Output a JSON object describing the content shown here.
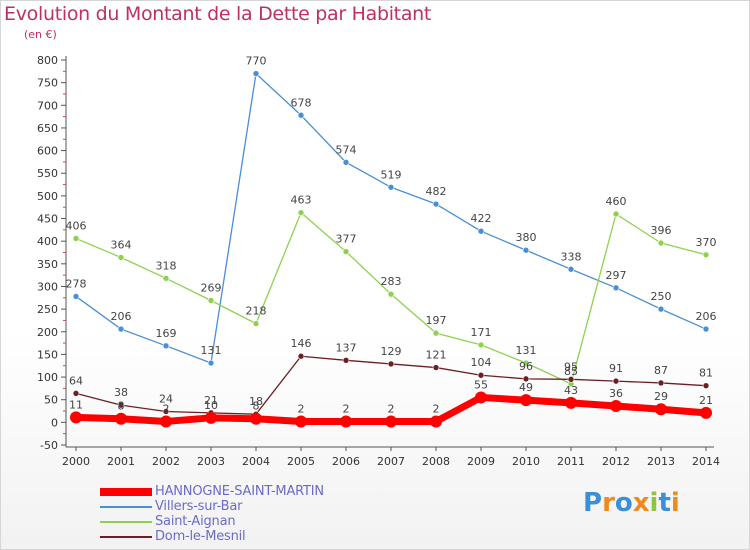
{
  "chart_data": {
    "type": "line",
    "title": "Evolution du Montant de la Dette par Habitant",
    "subtitle": "(en €)",
    "x": [
      2000,
      2001,
      2002,
      2003,
      2004,
      2005,
      2006,
      2007,
      2008,
      2009,
      2010,
      2011,
      2012,
      2013,
      2014
    ],
    "ylim": [
      -50,
      800
    ],
    "yticks": [
      -50,
      0,
      50,
      100,
      150,
      200,
      250,
      300,
      350,
      400,
      450,
      500,
      550,
      600,
      650,
      700,
      750,
      800
    ],
    "grid": false,
    "legend_position": "bottom-left",
    "series": [
      {
        "name": "HANNOGNE-SAINT-MARTIN",
        "color": "#ff0000",
        "values": [
          11,
          8,
          2,
          10,
          8,
          2,
          2,
          2,
          2,
          55,
          49,
          43,
          36,
          29,
          21
        ]
      },
      {
        "name": "Villers-sur-Bar",
        "color": "#4a8fd6",
        "values": [
          278,
          206,
          169,
          131,
          770,
          678,
          574,
          519,
          482,
          422,
          380,
          338,
          297,
          250,
          206
        ]
      },
      {
        "name": "Saint-Aignan",
        "color": "#8fd14f",
        "values": [
          406,
          364,
          318,
          269,
          218,
          463,
          377,
          283,
          197,
          171,
          131,
          85,
          460,
          396,
          370
        ]
      },
      {
        "name": "Dom-le-Mesnil",
        "color": "#6b1f22",
        "values": [
          64,
          38,
          24,
          21,
          18,
          146,
          137,
          129,
          121,
          104,
          96,
          95,
          91,
          87,
          81
        ]
      }
    ]
  },
  "logo": {
    "letters": [
      "P",
      "r",
      "o",
      "x",
      "i",
      "t",
      "i"
    ],
    "colors": [
      "#3a8fd9",
      "#f08a1c",
      "#3a8fd9",
      "#f08a1c",
      "#8cc63f",
      "#3a8fd9",
      "#f08a1c"
    ]
  }
}
